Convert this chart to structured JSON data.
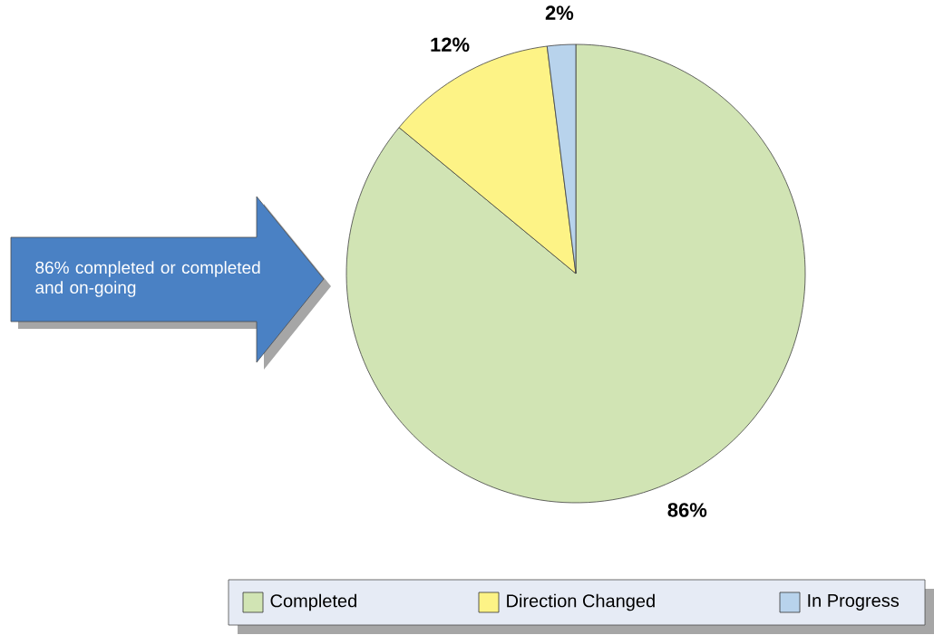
{
  "chart_data": {
    "type": "pie",
    "categories": [
      "Completed",
      "Direction Changed",
      "In Progress"
    ],
    "values": [
      86,
      12,
      2
    ],
    "value_labels": [
      "86%",
      "12%",
      "2%"
    ],
    "colors": [
      "#d1e4b4",
      "#fdf386",
      "#b8d3ec"
    ],
    "legend": "bottom",
    "annotations": [
      "86% completed or completed and on-going"
    ]
  }
}
